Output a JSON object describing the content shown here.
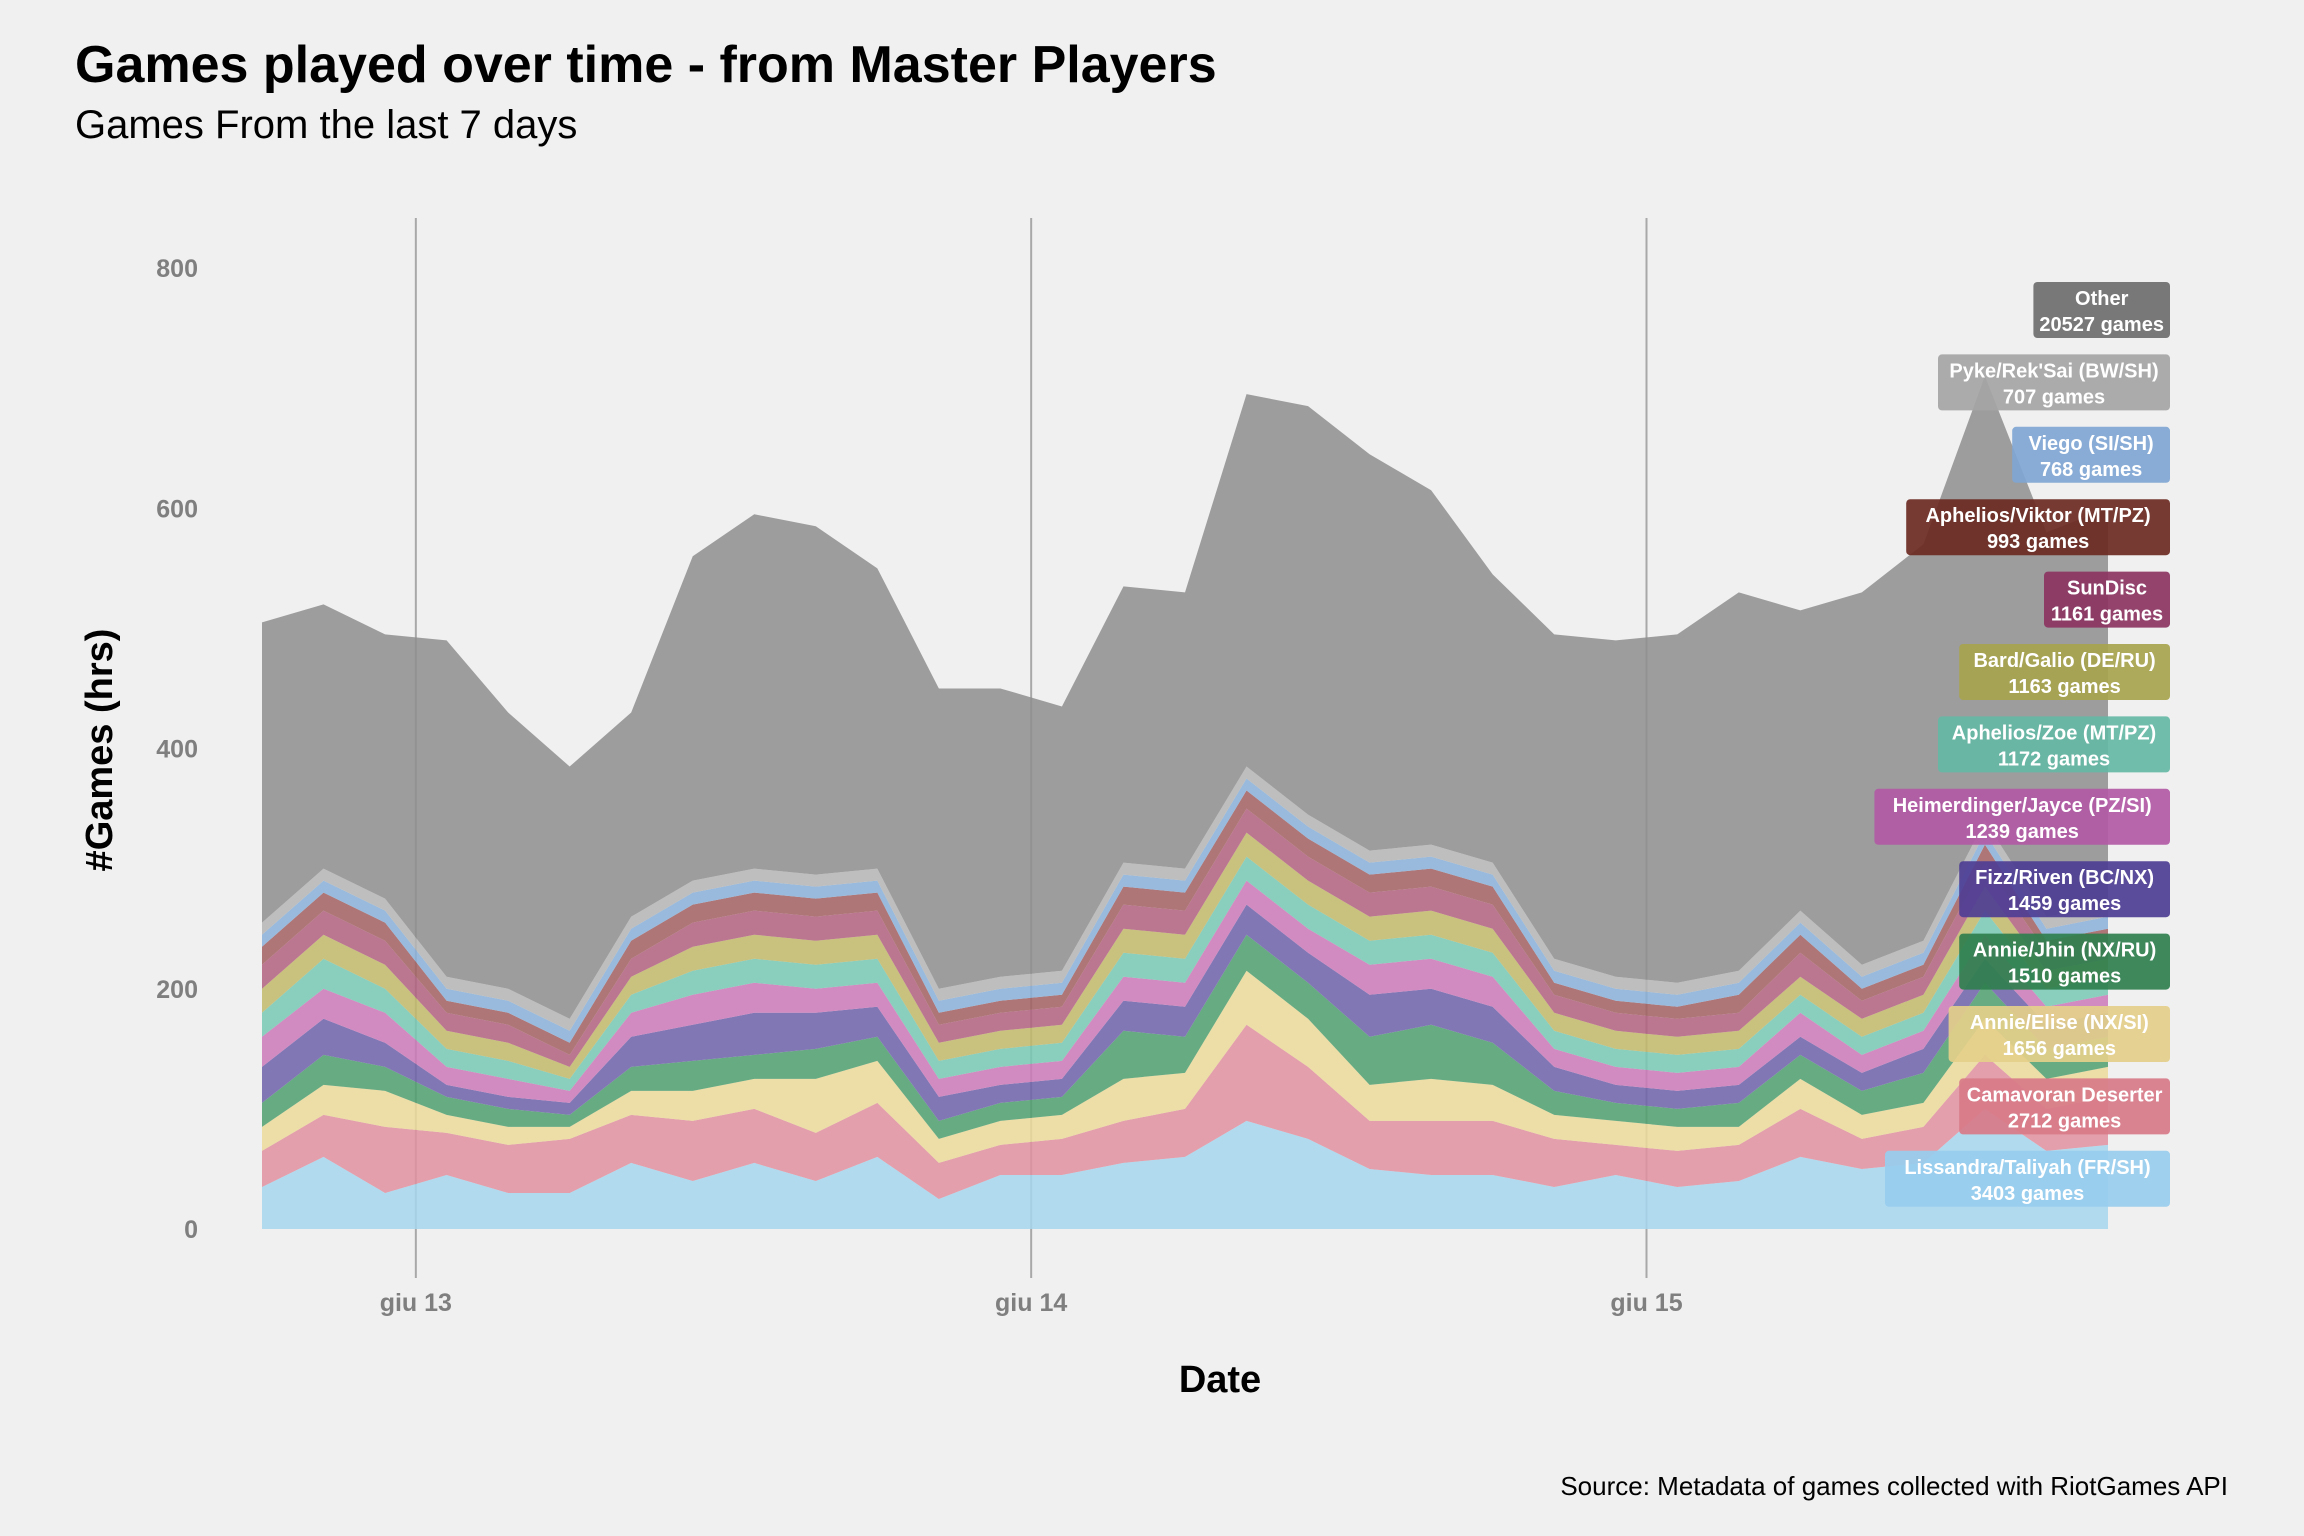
{
  "chart_data": {
    "type": "area",
    "stacked": true,
    "title": "Games played over time - from Master Players",
    "subtitle": "Games From the last 7 days",
    "xlabel": "Date",
    "ylabel": "#Games (hrs)",
    "caption": "Source: Metadata of games collected with RiotGames API",
    "x_ticks": [
      "giu 13",
      "giu 14",
      "giu 15"
    ],
    "x_tick_values": [
      2.5,
      12.5,
      22.5
    ],
    "y_ticks": [
      0,
      200,
      400,
      600,
      800
    ],
    "ylim": [
      0,
      800
    ],
    "grid": "vertical lines at date ticks",
    "x": [
      0,
      1,
      2,
      3,
      4,
      5,
      6,
      7,
      8,
      9,
      10,
      11,
      12,
      13,
      14,
      15,
      16,
      17,
      18,
      19,
      20,
      21,
      22,
      23,
      24,
      25,
      26,
      27,
      28,
      29,
      30
    ],
    "series": [
      {
        "name": "Lissandra/Taliyah (FR/SH)",
        "label2": "3403 games",
        "color": "#a6d6ef",
        "values": [
          35,
          60,
          30,
          45,
          30,
          30,
          55,
          40,
          55,
          40,
          60,
          25,
          45,
          45,
          55,
          60,
          90,
          75,
          50,
          45,
          45,
          35,
          45,
          35,
          40,
          60,
          50,
          55,
          100,
          65,
          70
        ]
      },
      {
        "name": "Camavoran Deserter",
        "label2": "2712 games",
        "color": "#e0909f",
        "values": [
          30,
          35,
          55,
          35,
          40,
          45,
          40,
          50,
          45,
          40,
          45,
          30,
          25,
          30,
          35,
          40,
          80,
          60,
          40,
          45,
          45,
          40,
          25,
          30,
          30,
          40,
          25,
          30,
          45,
          35,
          40
        ]
      },
      {
        "name": "Annie/Elise (NX/SI)",
        "label2": "1656 games",
        "color": "#ecd99a",
        "values": [
          20,
          25,
          30,
          15,
          15,
          10,
          20,
          25,
          25,
          45,
          35,
          20,
          20,
          20,
          35,
          30,
          45,
          40,
          30,
          35,
          30,
          20,
          20,
          20,
          15,
          25,
          20,
          20,
          30,
          25,
          25
        ]
      },
      {
        "name": "Annie/Jhin (NX/RU)",
        "label2": "1510 games",
        "color": "#4f9f6e",
        "values": [
          20,
          25,
          20,
          15,
          15,
          10,
          20,
          25,
          20,
          25,
          20,
          15,
          15,
          15,
          40,
          30,
          30,
          30,
          40,
          45,
          35,
          20,
          15,
          15,
          20,
          20,
          20,
          25,
          30,
          25,
          25
        ]
      },
      {
        "name": "Fizz/Riven (BC/NX)",
        "label2": "1459 games",
        "color": "#6f62aa",
        "values": [
          30,
          30,
          20,
          10,
          10,
          10,
          25,
          30,
          35,
          30,
          25,
          20,
          15,
          15,
          25,
          25,
          25,
          25,
          35,
          30,
          30,
          20,
          15,
          15,
          15,
          15,
          15,
          20,
          20,
          20,
          20
        ]
      },
      {
        "name": "Heimerdinger/Jayce (PZ/SI)",
        "label2": "1239 games",
        "color": "#cc79b8",
        "values": [
          25,
          25,
          25,
          15,
          15,
          10,
          20,
          25,
          25,
          20,
          20,
          15,
          15,
          15,
          20,
          20,
          20,
          20,
          25,
          25,
          25,
          15,
          15,
          15,
          15,
          20,
          15,
          15,
          20,
          15,
          15
        ]
      },
      {
        "name": "Aphelios/Zoe (MT/PZ)",
        "label2": "1172 games",
        "color": "#78c8b4",
        "values": [
          20,
          25,
          20,
          15,
          15,
          10,
          15,
          20,
          20,
          20,
          20,
          15,
          15,
          15,
          20,
          20,
          20,
          20,
          20,
          20,
          20,
          15,
          15,
          15,
          15,
          15,
          15,
          15,
          20,
          15,
          15
        ]
      },
      {
        "name": "Bard/Galio (DE/RU)",
        "label2": "1163 games",
        "color": "#c2b86a",
        "values": [
          20,
          20,
          20,
          15,
          15,
          10,
          15,
          20,
          20,
          20,
          20,
          15,
          15,
          15,
          20,
          20,
          20,
          20,
          20,
          20,
          20,
          15,
          15,
          15,
          15,
          15,
          15,
          15,
          20,
          15,
          15
        ]
      },
      {
        "name": "SunDisc",
        "label2": "1161 games",
        "color": "#b2607f",
        "values": [
          20,
          20,
          20,
          15,
          15,
          10,
          15,
          20,
          20,
          20,
          20,
          15,
          15,
          15,
          20,
          20,
          20,
          20,
          20,
          20,
          20,
          15,
          15,
          15,
          15,
          20,
          15,
          15,
          20,
          15,
          15
        ]
      },
      {
        "name": "Aphelios/Viktor (MT/PZ)",
        "label2": "993 games",
        "color": "#a26060",
        "values": [
          15,
          15,
          15,
          10,
          10,
          10,
          15,
          15,
          15,
          15,
          15,
          10,
          10,
          10,
          15,
          15,
          15,
          15,
          15,
          15,
          15,
          10,
          10,
          10,
          15,
          15,
          10,
          10,
          15,
          10,
          10
        ]
      },
      {
        "name": "Viego (SI/SH)",
        "label2": "768 games",
        "color": "#8ab0d8",
        "values": [
          10,
          10,
          10,
          10,
          10,
          10,
          10,
          10,
          10,
          10,
          10,
          10,
          10,
          10,
          10,
          10,
          10,
          10,
          10,
          10,
          10,
          10,
          10,
          10,
          10,
          10,
          10,
          10,
          10,
          10,
          10
        ]
      },
      {
        "name": "Pyke/Rek'Sai (BW/SH)",
        "label2": "707 games",
        "color": "#b5b5b5",
        "values": [
          10,
          10,
          10,
          10,
          10,
          10,
          10,
          10,
          10,
          10,
          10,
          10,
          10,
          10,
          10,
          10,
          10,
          10,
          10,
          10,
          10,
          10,
          10,
          10,
          10,
          10,
          10,
          10,
          10,
          10,
          10
        ]
      },
      {
        "name": "Other",
        "label2": "20527 games",
        "color": "#8e8e8e",
        "values": [
          250,
          220,
          220,
          280,
          230,
          210,
          170,
          270,
          295,
          290,
          250,
          250,
          240,
          220,
          230,
          230,
          310,
          340,
          330,
          295,
          240,
          270,
          280,
          290,
          315,
          250,
          310,
          330,
          370,
          320,
          330
        ]
      }
    ],
    "labels": [
      {
        "line1": "Other",
        "line2": "20527 games",
        "color": "#6e6e6e"
      },
      {
        "line1": "Pyke/Rek'Sai (BW/SH)",
        "line2": "707 games",
        "color": "#a5a5a5"
      },
      {
        "line1": "Viego (SI/SH)",
        "line2": "768 games",
        "color": "#7fa6d4"
      },
      {
        "line1": "Aphelios/Viktor (MT/PZ)",
        "line2": "993 games",
        "color": "#6b2a22"
      },
      {
        "line1": "SunDisc",
        "line2": "1161 games",
        "color": "#8c3462"
      },
      {
        "line1": "Bard/Galio (DE/RU)",
        "line2": "1163 games",
        "color": "#a8a44e"
      },
      {
        "line1": "Aphelios/Zoe (MT/PZ)",
        "line2": "1172 games",
        "color": "#66b8a6"
      },
      {
        "line1": "Heimerdinger/Jayce (PZ/SI)",
        "line2": "1239 games",
        "color": "#b25aa6"
      },
      {
        "line1": "Fizz/Riven (BC/NX)",
        "line2": "1459 games",
        "color": "#4e3e94"
      },
      {
        "line1": "Annie/Jhin (NX/RU)",
        "line2": "1510 games",
        "color": "#2f7f4e"
      },
      {
        "line1": "Annie/Elise (NX/SI)",
        "line2": "1656 games",
        "color": "#e4cf8a"
      },
      {
        "line1": "Camavoran Deserter",
        "line2": "2712 games",
        "color": "#d87a88"
      },
      {
        "line1": "Lissandra/Taliyah (FR/SH)",
        "line2": "3403 games",
        "color": "#98cdee"
      }
    ]
  }
}
